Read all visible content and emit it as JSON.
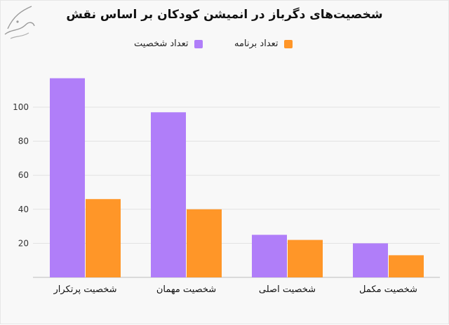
{
  "chart_data": {
    "type": "bar",
    "title": "شخصیت‌های دگرباز در انمیشن کودکان بر اساس نقش",
    "categories": [
      "شخصیت پرتکرار",
      "شخصیت مهمان",
      "شخصیت اصلی",
      "شخصیت مکمل"
    ],
    "series": [
      {
        "name": "تعداد شخصیت",
        "values": [
          117,
          97,
          25,
          20
        ],
        "color": "#b07ef9"
      },
      {
        "name": "تعداد برنامه",
        "values": [
          46,
          40,
          22,
          13
        ],
        "color": "#ff9628"
      }
    ],
    "yticks": [
      20,
      40,
      60,
      80,
      100
    ],
    "ylim": [
      0,
      125
    ],
    "xlabel": "",
    "ylabel": "",
    "grid": true,
    "legend_position": "top-center"
  }
}
